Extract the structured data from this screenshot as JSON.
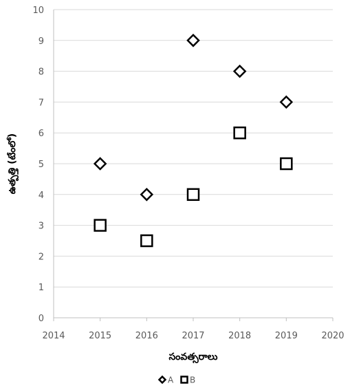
{
  "chart_data": {
    "type": "scatter",
    "title": "",
    "xlabel": "సంవత్సరాలు",
    "ylabel": "ఉత్పత్తి (టేంలో)",
    "xlim": [
      2014,
      2020
    ],
    "ylim": [
      0,
      10
    ],
    "xticks": [
      2014,
      2015,
      2016,
      2017,
      2018,
      2019,
      2020
    ],
    "yticks": [
      0,
      1,
      2,
      3,
      4,
      5,
      6,
      7,
      8,
      9,
      10
    ],
    "grid": "horizontal",
    "legend_position": "bottom",
    "series": [
      {
        "name": "A",
        "marker": "diamond",
        "color": "#000000",
        "points": [
          {
            "x": 2015,
            "y": 5
          },
          {
            "x": 2016,
            "y": 4
          },
          {
            "x": 2017,
            "y": 9
          },
          {
            "x": 2018,
            "y": 8
          },
          {
            "x": 2019,
            "y": 7
          }
        ]
      },
      {
        "name": "B",
        "marker": "square",
        "color": "#000000",
        "points": [
          {
            "x": 2015,
            "y": 3
          },
          {
            "x": 2016,
            "y": 2.5
          },
          {
            "x": 2017,
            "y": 4
          },
          {
            "x": 2018,
            "y": 6
          },
          {
            "x": 2019,
            "y": 5
          }
        ]
      }
    ],
    "gridline_color": "#d9d9d9",
    "axis_color": "#bfbfbf"
  }
}
